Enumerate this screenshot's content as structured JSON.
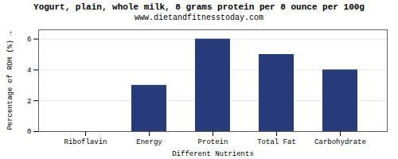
{
  "chart_data": {
    "type": "bar",
    "title": "Yogurt, plain, whole milk, 8 grams protein per 8 ounce per 100g",
    "subtitle": "www.dietandfitnesstoday.com",
    "categories": [
      "Riboflavin",
      "Energy",
      "Protein",
      "Total Fat",
      "Carbohydrate"
    ],
    "values": [
      0,
      3.0,
      6.0,
      5.0,
      4.0
    ],
    "color": "#273a7a",
    "xlabel": "Different Nutrients",
    "ylabel": "Percentage of RDH (%)",
    "ylim": [
      0,
      6.6
    ],
    "yticks": [
      0,
      2,
      4,
      6
    ],
    "grid": true
  }
}
